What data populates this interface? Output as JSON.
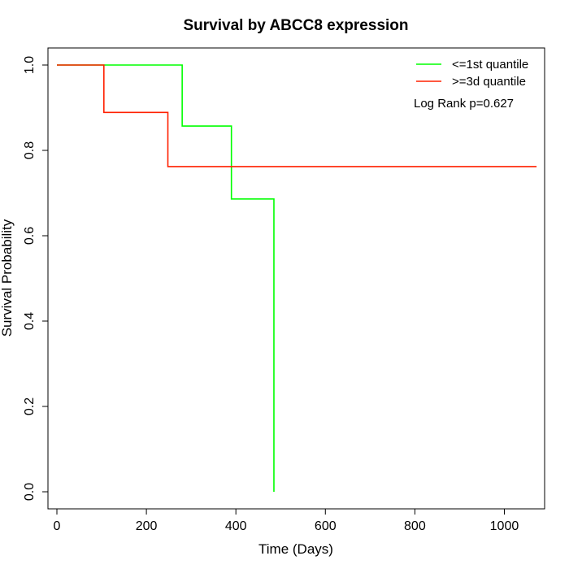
{
  "chart_data": {
    "type": "line",
    "title": "Survival by ABCC8 expression",
    "xlabel": "Time (Days)",
    "ylabel": "Survival Probability",
    "xlim": [
      -20,
      1090
    ],
    "ylim": [
      -0.04,
      1.04
    ],
    "x_ticks": [
      0,
      200,
      400,
      600,
      800,
      1000
    ],
    "y_ticks": [
      0.0,
      0.2,
      0.4,
      0.6,
      0.8,
      1.0
    ],
    "x_tick_labels": [
      "0",
      "200",
      "400",
      "600",
      "800",
      "1000"
    ],
    "y_tick_labels": [
      "0.0",
      "0.2",
      "0.4",
      "0.6",
      "0.8",
      "1.0"
    ],
    "grid": false,
    "legend_position": "top-right",
    "annotation": "Log Rank p=0.627",
    "series": [
      {
        "name": "<=1st quantile",
        "color": "#00ff00",
        "step": true,
        "x": [
          0,
          280,
          390,
          485,
          485
        ],
        "y": [
          1.0,
          0.857,
          0.686,
          0.686,
          0.0
        ]
      },
      {
        "name": ">=3d quantile",
        "color": "#ff2000",
        "step": true,
        "x": [
          0,
          105,
          248,
          1072
        ],
        "y": [
          1.0,
          0.889,
          0.762,
          0.762
        ]
      }
    ]
  }
}
